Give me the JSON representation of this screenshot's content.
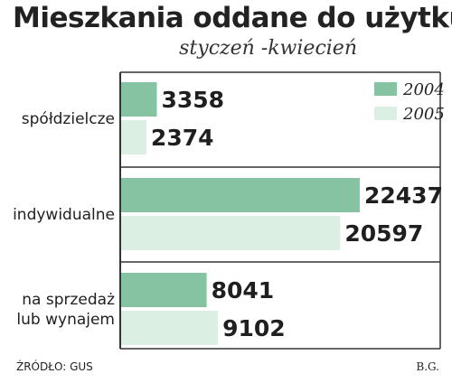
{
  "title": "Mieszkania oddane do użytku",
  "subtitle": "styczeń -kwiecień",
  "source": "ŹRÓDŁO: GUS",
  "author": "B.G.",
  "colors": {
    "y2004": "#86c3a3",
    "y2005": "#dcefe3",
    "frame": "#333333"
  },
  "chart_data": {
    "type": "bar",
    "orientation": "horizontal",
    "categories": [
      "spółdzielcze",
      "indywidualne",
      "na sprzedaż\nlub wynajem"
    ],
    "series": [
      {
        "name": "2004",
        "values": [
          3358,
          22437,
          8041
        ]
      },
      {
        "name": "2005",
        "values": [
          2374,
          20597,
          9102
        ]
      }
    ],
    "data_labels": [
      [
        "3358",
        "2374"
      ],
      [
        "22437",
        "20597"
      ],
      [
        "8041",
        "9102"
      ]
    ],
    "title": "Mieszkania oddane do użytku",
    "subtitle": "styczeń -kwiecień",
    "legend_placement": "top-right",
    "grid": false
  }
}
